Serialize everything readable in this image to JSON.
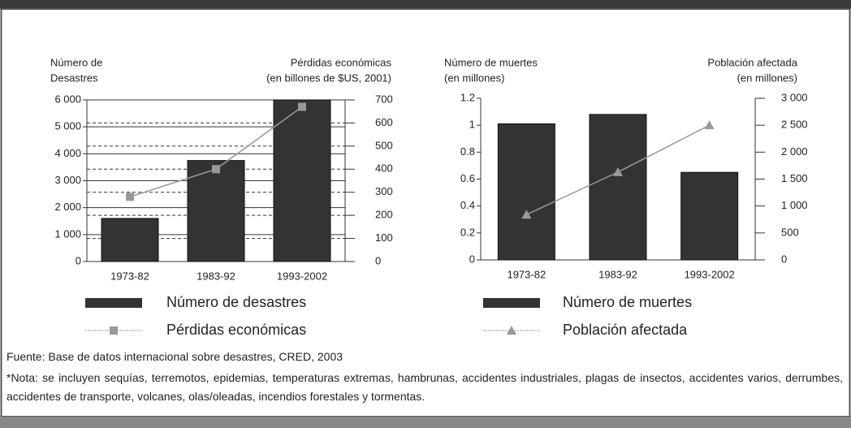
{
  "chart_data": [
    {
      "type": "bar",
      "categories": [
        "1973-82",
        "1983-92",
        "1993-2002"
      ],
      "y_label": [
        "Número de",
        "Desastres"
      ],
      "y2_label": [
        "Pérdidas económicas",
        "(en billones de $US, 2001)"
      ],
      "ylim": [
        0,
        6000
      ],
      "yticks": [
        0,
        {
          "value": 1000,
          "label": "1 000"
        },
        {
          "value": 2000,
          "label": "2 000"
        },
        {
          "value": 3000,
          "label": "3 000"
        },
        {
          "value": 4000,
          "label": "4 000"
        },
        {
          "value": 5000,
          "label": "5 000"
        },
        {
          "value": 6000,
          "label": "6 000"
        }
      ],
      "y2lim": [
        0,
        700
      ],
      "y2ticks": [
        0,
        100,
        200,
        300,
        400,
        500,
        600,
        700
      ],
      "grid": true,
      "y2grid": true,
      "series": [
        {
          "name": "Número de desastres",
          "type": "bar",
          "color": "#333333",
          "values": [
            1600,
            3750,
            6000
          ]
        },
        {
          "name": "Pérdidas económicas",
          "type": "line",
          "axis": "y2",
          "marker": "square",
          "color": "#999999",
          "values": [
            280,
            400,
            670
          ]
        }
      ]
    },
    {
      "type": "bar",
      "categories": [
        "1973-82",
        "1983-92",
        "1993-2002"
      ],
      "y_label": [
        "Número de muertes",
        "(en millones)"
      ],
      "y2_label": [
        "Población afectada",
        "(en millones)"
      ],
      "ylim": [
        0,
        1.2
      ],
      "yticks": [
        0,
        0.2,
        0.4,
        0.6,
        0.8,
        1,
        1.2
      ],
      "y2lim": [
        0,
        3000
      ],
      "y2ticks": [
        0,
        500,
        {
          "value": 1000,
          "label": "1 000"
        },
        {
          "value": 1500,
          "label": "1 500"
        },
        {
          "value": 2000,
          "label": "2 000"
        },
        {
          "value": 2500,
          "label": "2 500"
        },
        {
          "value": 3000,
          "label": "3 000"
        }
      ],
      "grid": false,
      "y2grid": false,
      "series": [
        {
          "name": "Número de muertes",
          "type": "bar",
          "color": "#333333",
          "values": [
            1.01,
            1.08,
            0.65
          ]
        },
        {
          "name": "Población afectada",
          "type": "line",
          "axis": "y2",
          "marker": "triangle",
          "color": "#999999",
          "values": [
            840,
            1630,
            2500
          ]
        }
      ]
    }
  ],
  "source": "Fuente: Base de datos internacional sobre desastres, CRED, 2003",
  "note": "*Nota: se incluyen sequías, terremotos, epidemias, temperaturas extremas, hambrunas, accidentes industriales, plagas de insectos, accidentes varios, derrumbes, accidentes de transporte, volcanes, olas/oleadas, incendios forestales y tormentas."
}
